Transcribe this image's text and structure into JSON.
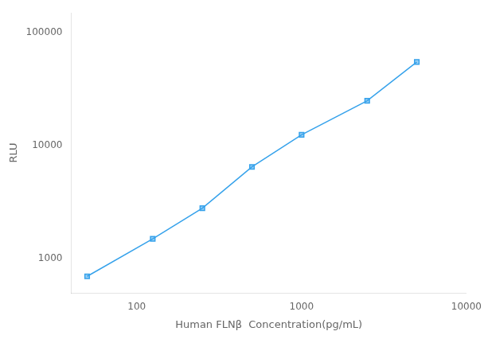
{
  "chart_data": {
    "type": "line",
    "x": [
      50,
      125,
      250,
      500,
      1000,
      2500,
      5000
    ],
    "values": [
      700,
      1500,
      2800,
      6500,
      12500,
      25000,
      55000
    ],
    "xlabel": "Human FLNβ  Concentration(pg/mL)",
    "ylabel": "RLU",
    "log": true,
    "xlim": [
      40,
      10000
    ],
    "ylim": [
      500,
      150000
    ],
    "xticks": [
      100,
      1000,
      10000
    ],
    "yticks": [
      1000,
      10000,
      100000
    ],
    "marker": "square",
    "grid": false
  }
}
